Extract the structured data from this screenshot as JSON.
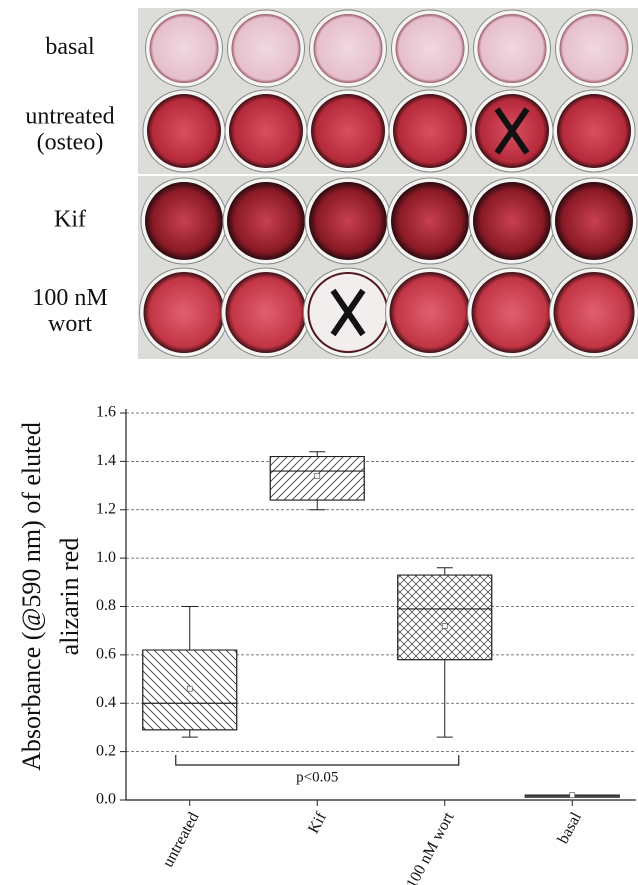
{
  "row_labels": [
    [
      "basal"
    ],
    [
      "untreated",
      "(osteo)"
    ],
    [
      "Kif"
    ],
    [
      "100 nM",
      "wort"
    ]
  ],
  "chart_data": {
    "type": "box",
    "ylabel": [
      "Absorbance (@590 nm) of eluted",
      "alizarin red"
    ],
    "categories": [
      "untreated",
      "Kif",
      "100 nM wort",
      "basal"
    ],
    "boxes": [
      {
        "min": 0.26,
        "q1": 0.29,
        "median": 0.4,
        "q3": 0.62,
        "max": 0.8,
        "mean": 0.46
      },
      {
        "min": 1.2,
        "q1": 1.24,
        "median": 1.36,
        "q3": 1.42,
        "max": 1.44,
        "mean": 1.34
      },
      {
        "min": 0.26,
        "q1": 0.58,
        "median": 0.79,
        "q3": 0.93,
        "max": 0.96,
        "mean": 0.72
      },
      {
        "min": 0.02,
        "q1": 0.02,
        "median": 0.02,
        "q3": 0.02,
        "max": 0.02,
        "mean": 0.02
      }
    ],
    "annotation": "p<0.05",
    "ylim": [
      0,
      1.6
    ],
    "yticks": [
      {
        "value": 0,
        "label": "0.0"
      },
      {
        "value": 0.2,
        "label": "0.2"
      },
      {
        "value": 0.4,
        "label": "0.4"
      },
      {
        "value": 0.6,
        "label": "0.6"
      },
      {
        "value": 0.8,
        "label": "0.8"
      },
      {
        "value": 1.0,
        "label": "1.0"
      },
      {
        "value": 1.2,
        "label": "1.2"
      },
      {
        "value": 1.4,
        "label": "1.4"
      },
      {
        "value": 1.6,
        "label": "1.6"
      }
    ],
    "grid": true
  }
}
